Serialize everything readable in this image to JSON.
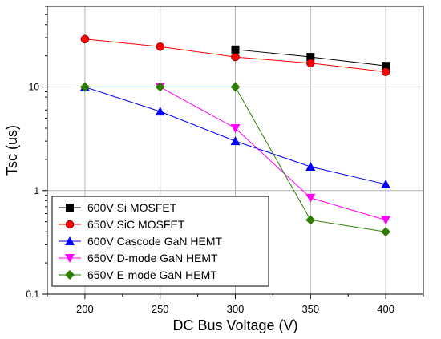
{
  "chart_data": {
    "type": "line",
    "title": "",
    "xlabel": "DC Bus Voltage (V)",
    "ylabel": "Tsc (us)",
    "x_scale": "linear",
    "y_scale": "log",
    "xlim": [
      175,
      425
    ],
    "ylim": [
      0.1,
      60
    ],
    "x_ticks": [
      200,
      250,
      300,
      350,
      400
    ],
    "y_ticks": [
      0.1,
      1,
      10
    ],
    "y_tick_labels": [
      "0.1",
      "1",
      "10"
    ],
    "grid": true,
    "legend_position": "bottom-left",
    "series": [
      {
        "name": "600V Si MOSFET",
        "color": "#000000",
        "marker": "square",
        "x": [
          300,
          350,
          400
        ],
        "y": [
          23,
          19.5,
          16
        ]
      },
      {
        "name": "650V SiC MOSFET",
        "color": "#ff0000",
        "marker": "circle",
        "x": [
          200,
          250,
          300,
          350,
          400
        ],
        "y": [
          29,
          24.5,
          19.5,
          17,
          14
        ]
      },
      {
        "name": "600V Cascode GaN HEMT",
        "color": "#0000ff",
        "marker": "triangle-up",
        "x": [
          200,
          250,
          300,
          350,
          400
        ],
        "y": [
          10,
          5.8,
          3.0,
          1.7,
          1.15
        ]
      },
      {
        "name": "650V D-mode GaN HEMT",
        "color": "#ff00ff",
        "marker": "triangle-down",
        "x": [
          250,
          300,
          350,
          400
        ],
        "y": [
          10,
          4.0,
          0.85,
          0.52
        ]
      },
      {
        "name": "650V E-mode GaN HEMT",
        "color": "#2e7d00",
        "marker": "diamond",
        "x": [
          200,
          250,
          300,
          350,
          400
        ],
        "y": [
          10,
          10,
          10,
          0.52,
          0.4
        ]
      }
    ]
  }
}
